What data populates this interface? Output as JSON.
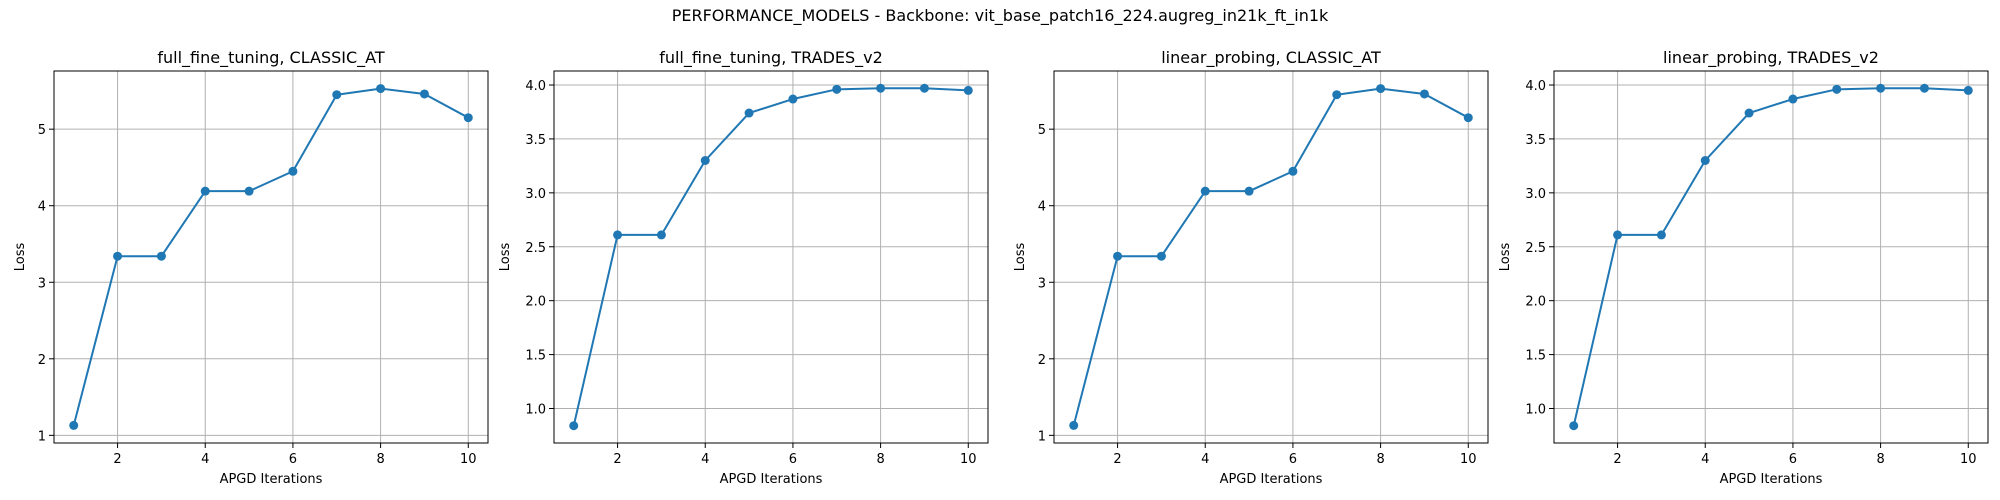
{
  "figure": {
    "suptitle": "PERFORMANCE_MODELS - Backbone: vit_base_patch16_224.augreg_in21k_ft_in1k"
  },
  "colors": {
    "line": "#1f77b4",
    "grid": "#b0b0b0",
    "axis": "#000000",
    "background": "#ffffff"
  },
  "chart_data": [
    {
      "type": "line",
      "title": "full_fine_tuning, CLASSIC_AT",
      "xlabel": "APGD Iterations",
      "ylabel": "Loss",
      "grid": true,
      "marker": "circle",
      "x": [
        1,
        2,
        3,
        4,
        5,
        6,
        7,
        8,
        9,
        10
      ],
      "y": [
        1.13,
        3.34,
        3.34,
        4.19,
        4.19,
        4.45,
        5.45,
        5.53,
        5.46,
        5.15
      ],
      "xticks": [
        2,
        4,
        6,
        8,
        10
      ],
      "xtick_labels": [
        "2",
        "4",
        "6",
        "8",
        "10"
      ],
      "yticks": [
        1,
        2,
        3,
        4,
        5
      ],
      "ytick_labels": [
        "1",
        "2",
        "3",
        "4",
        "5"
      ],
      "xlim": [
        0.55,
        10.45
      ],
      "ylim": [
        0.9,
        5.76
      ]
    },
    {
      "type": "line",
      "title": "full_fine_tuning, TRADES_v2",
      "xlabel": "APGD Iterations",
      "ylabel": "Loss",
      "grid": true,
      "marker": "circle",
      "x": [
        1,
        2,
        3,
        4,
        5,
        6,
        7,
        8,
        9,
        10
      ],
      "y": [
        0.84,
        2.61,
        2.61,
        3.3,
        3.74,
        3.87,
        3.96,
        3.97,
        3.97,
        3.95
      ],
      "xticks": [
        2,
        4,
        6,
        8,
        10
      ],
      "xtick_labels": [
        "2",
        "4",
        "6",
        "8",
        "10"
      ],
      "yticks": [
        1.0,
        1.5,
        2.0,
        2.5,
        3.0,
        3.5,
        4.0
      ],
      "ytick_labels": [
        "1.0",
        "1.5",
        "2.0",
        "2.5",
        "3.0",
        "3.5",
        "4.0"
      ],
      "xlim": [
        0.55,
        10.45
      ],
      "ylim": [
        0.68,
        4.13
      ]
    },
    {
      "type": "line",
      "title": "linear_probing, CLASSIC_AT",
      "xlabel": "APGD Iterations",
      "ylabel": "Loss",
      "grid": true,
      "marker": "circle",
      "x": [
        1,
        2,
        3,
        4,
        5,
        6,
        7,
        8,
        9,
        10
      ],
      "y": [
        1.13,
        3.34,
        3.34,
        4.19,
        4.19,
        4.45,
        5.45,
        5.53,
        5.46,
        5.15
      ],
      "xticks": [
        2,
        4,
        6,
        8,
        10
      ],
      "xtick_labels": [
        "2",
        "4",
        "6",
        "8",
        "10"
      ],
      "yticks": [
        1,
        2,
        3,
        4,
        5
      ],
      "ytick_labels": [
        "1",
        "2",
        "3",
        "4",
        "5"
      ],
      "xlim": [
        0.55,
        10.45
      ],
      "ylim": [
        0.9,
        5.76
      ]
    },
    {
      "type": "line",
      "title": "linear_probing, TRADES_v2",
      "xlabel": "APGD Iterations",
      "ylabel": "Loss",
      "grid": true,
      "marker": "circle",
      "x": [
        1,
        2,
        3,
        4,
        5,
        6,
        7,
        8,
        9,
        10
      ],
      "y": [
        0.84,
        2.61,
        2.61,
        3.3,
        3.74,
        3.87,
        3.96,
        3.97,
        3.97,
        3.95
      ],
      "xticks": [
        2,
        4,
        6,
        8,
        10
      ],
      "xtick_labels": [
        "2",
        "4",
        "6",
        "8",
        "10"
      ],
      "yticks": [
        1.0,
        1.5,
        2.0,
        2.5,
        3.0,
        3.5,
        4.0
      ],
      "ytick_labels": [
        "1.0",
        "1.5",
        "2.0",
        "2.5",
        "3.0",
        "3.5",
        "4.0"
      ],
      "xlim": [
        0.55,
        10.45
      ],
      "ylim": [
        0.68,
        4.13
      ]
    }
  ]
}
